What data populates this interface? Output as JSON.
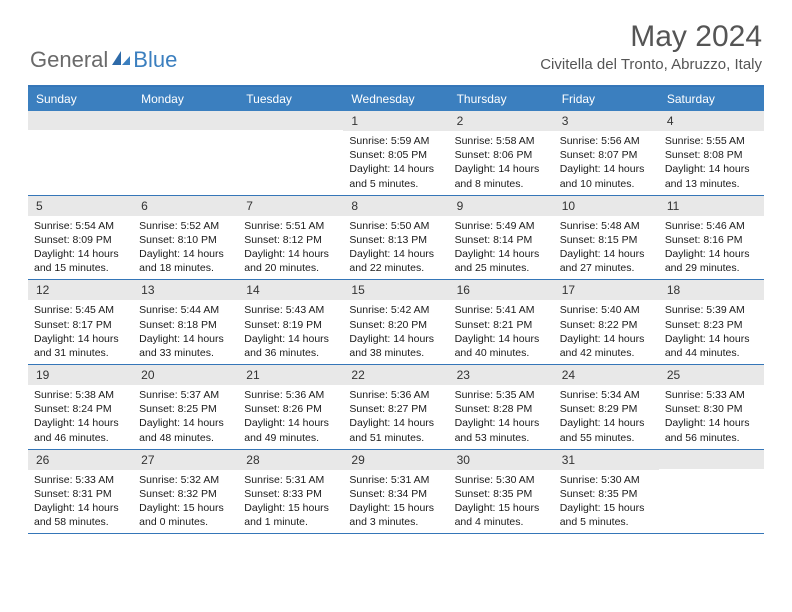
{
  "logo": {
    "part1": "General",
    "part2": "Blue"
  },
  "title": "May 2024",
  "location": "Civitella del Tronto, Abruzzo, Italy",
  "colors": {
    "header_bg": "#3b7fbf",
    "header_border": "#3576b8",
    "day_strip": "#e8e8e8",
    "logo_gray": "#6a6a6a",
    "logo_blue": "#3b7fbf"
  },
  "day_names": [
    "Sunday",
    "Monday",
    "Tuesday",
    "Wednesday",
    "Thursday",
    "Friday",
    "Saturday"
  ],
  "weeks": [
    [
      {
        "num": "",
        "sunrise": "",
        "sunset": "",
        "daylight": ""
      },
      {
        "num": "",
        "sunrise": "",
        "sunset": "",
        "daylight": ""
      },
      {
        "num": "",
        "sunrise": "",
        "sunset": "",
        "daylight": ""
      },
      {
        "num": "1",
        "sunrise": "Sunrise: 5:59 AM",
        "sunset": "Sunset: 8:05 PM",
        "daylight": "Daylight: 14 hours and 5 minutes."
      },
      {
        "num": "2",
        "sunrise": "Sunrise: 5:58 AM",
        "sunset": "Sunset: 8:06 PM",
        "daylight": "Daylight: 14 hours and 8 minutes."
      },
      {
        "num": "3",
        "sunrise": "Sunrise: 5:56 AM",
        "sunset": "Sunset: 8:07 PM",
        "daylight": "Daylight: 14 hours and 10 minutes."
      },
      {
        "num": "4",
        "sunrise": "Sunrise: 5:55 AM",
        "sunset": "Sunset: 8:08 PM",
        "daylight": "Daylight: 14 hours and 13 minutes."
      }
    ],
    [
      {
        "num": "5",
        "sunrise": "Sunrise: 5:54 AM",
        "sunset": "Sunset: 8:09 PM",
        "daylight": "Daylight: 14 hours and 15 minutes."
      },
      {
        "num": "6",
        "sunrise": "Sunrise: 5:52 AM",
        "sunset": "Sunset: 8:10 PM",
        "daylight": "Daylight: 14 hours and 18 minutes."
      },
      {
        "num": "7",
        "sunrise": "Sunrise: 5:51 AM",
        "sunset": "Sunset: 8:12 PM",
        "daylight": "Daylight: 14 hours and 20 minutes."
      },
      {
        "num": "8",
        "sunrise": "Sunrise: 5:50 AM",
        "sunset": "Sunset: 8:13 PM",
        "daylight": "Daylight: 14 hours and 22 minutes."
      },
      {
        "num": "9",
        "sunrise": "Sunrise: 5:49 AM",
        "sunset": "Sunset: 8:14 PM",
        "daylight": "Daylight: 14 hours and 25 minutes."
      },
      {
        "num": "10",
        "sunrise": "Sunrise: 5:48 AM",
        "sunset": "Sunset: 8:15 PM",
        "daylight": "Daylight: 14 hours and 27 minutes."
      },
      {
        "num": "11",
        "sunrise": "Sunrise: 5:46 AM",
        "sunset": "Sunset: 8:16 PM",
        "daylight": "Daylight: 14 hours and 29 minutes."
      }
    ],
    [
      {
        "num": "12",
        "sunrise": "Sunrise: 5:45 AM",
        "sunset": "Sunset: 8:17 PM",
        "daylight": "Daylight: 14 hours and 31 minutes."
      },
      {
        "num": "13",
        "sunrise": "Sunrise: 5:44 AM",
        "sunset": "Sunset: 8:18 PM",
        "daylight": "Daylight: 14 hours and 33 minutes."
      },
      {
        "num": "14",
        "sunrise": "Sunrise: 5:43 AM",
        "sunset": "Sunset: 8:19 PM",
        "daylight": "Daylight: 14 hours and 36 minutes."
      },
      {
        "num": "15",
        "sunrise": "Sunrise: 5:42 AM",
        "sunset": "Sunset: 8:20 PM",
        "daylight": "Daylight: 14 hours and 38 minutes."
      },
      {
        "num": "16",
        "sunrise": "Sunrise: 5:41 AM",
        "sunset": "Sunset: 8:21 PM",
        "daylight": "Daylight: 14 hours and 40 minutes."
      },
      {
        "num": "17",
        "sunrise": "Sunrise: 5:40 AM",
        "sunset": "Sunset: 8:22 PM",
        "daylight": "Daylight: 14 hours and 42 minutes."
      },
      {
        "num": "18",
        "sunrise": "Sunrise: 5:39 AM",
        "sunset": "Sunset: 8:23 PM",
        "daylight": "Daylight: 14 hours and 44 minutes."
      }
    ],
    [
      {
        "num": "19",
        "sunrise": "Sunrise: 5:38 AM",
        "sunset": "Sunset: 8:24 PM",
        "daylight": "Daylight: 14 hours and 46 minutes."
      },
      {
        "num": "20",
        "sunrise": "Sunrise: 5:37 AM",
        "sunset": "Sunset: 8:25 PM",
        "daylight": "Daylight: 14 hours and 48 minutes."
      },
      {
        "num": "21",
        "sunrise": "Sunrise: 5:36 AM",
        "sunset": "Sunset: 8:26 PM",
        "daylight": "Daylight: 14 hours and 49 minutes."
      },
      {
        "num": "22",
        "sunrise": "Sunrise: 5:36 AM",
        "sunset": "Sunset: 8:27 PM",
        "daylight": "Daylight: 14 hours and 51 minutes."
      },
      {
        "num": "23",
        "sunrise": "Sunrise: 5:35 AM",
        "sunset": "Sunset: 8:28 PM",
        "daylight": "Daylight: 14 hours and 53 minutes."
      },
      {
        "num": "24",
        "sunrise": "Sunrise: 5:34 AM",
        "sunset": "Sunset: 8:29 PM",
        "daylight": "Daylight: 14 hours and 55 minutes."
      },
      {
        "num": "25",
        "sunrise": "Sunrise: 5:33 AM",
        "sunset": "Sunset: 8:30 PM",
        "daylight": "Daylight: 14 hours and 56 minutes."
      }
    ],
    [
      {
        "num": "26",
        "sunrise": "Sunrise: 5:33 AM",
        "sunset": "Sunset: 8:31 PM",
        "daylight": "Daylight: 14 hours and 58 minutes."
      },
      {
        "num": "27",
        "sunrise": "Sunrise: 5:32 AM",
        "sunset": "Sunset: 8:32 PM",
        "daylight": "Daylight: 15 hours and 0 minutes."
      },
      {
        "num": "28",
        "sunrise": "Sunrise: 5:31 AM",
        "sunset": "Sunset: 8:33 PM",
        "daylight": "Daylight: 15 hours and 1 minute."
      },
      {
        "num": "29",
        "sunrise": "Sunrise: 5:31 AM",
        "sunset": "Sunset: 8:34 PM",
        "daylight": "Daylight: 15 hours and 3 minutes."
      },
      {
        "num": "30",
        "sunrise": "Sunrise: 5:30 AM",
        "sunset": "Sunset: 8:35 PM",
        "daylight": "Daylight: 15 hours and 4 minutes."
      },
      {
        "num": "31",
        "sunrise": "Sunrise: 5:30 AM",
        "sunset": "Sunset: 8:35 PM",
        "daylight": "Daylight: 15 hours and 5 minutes."
      },
      {
        "num": "",
        "sunrise": "",
        "sunset": "",
        "daylight": ""
      }
    ]
  ]
}
